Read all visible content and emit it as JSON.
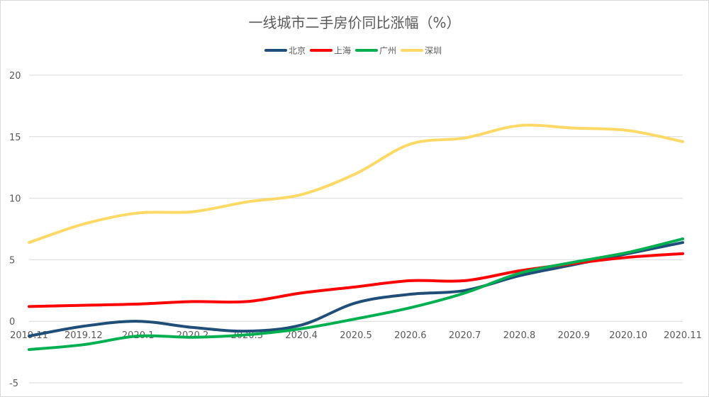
{
  "chart_data": {
    "type": "line",
    "title": "一线城市二手房价同比涨幅（%）",
    "categories": [
      "2019.11",
      "2019.12",
      "2020.1",
      "2020.2",
      "2020.3",
      "2020.4",
      "2020.5",
      "2020.6",
      "2020.7",
      "2020.8",
      "2020.9",
      "2020.10",
      "2020.11"
    ],
    "ylim": [
      -5,
      20
    ],
    "yticks": [
      -5,
      0,
      5,
      10,
      15,
      20
    ],
    "grid": true,
    "legend_position": "top",
    "series": [
      {
        "name": "北京",
        "color": "#1f4e79",
        "values": [
          -1.2,
          -0.4,
          0.0,
          -0.5,
          -0.8,
          -0.3,
          1.5,
          2.2,
          2.5,
          3.7,
          4.6,
          5.5,
          6.4
        ]
      },
      {
        "name": "上海",
        "color": "#ff0000",
        "values": [
          1.2,
          1.3,
          1.4,
          1.6,
          1.6,
          2.3,
          2.8,
          3.3,
          3.3,
          4.1,
          4.7,
          5.2,
          5.5
        ]
      },
      {
        "name": "广州",
        "color": "#00b050",
        "values": [
          -2.3,
          -1.9,
          -1.2,
          -1.3,
          -1.1,
          -0.6,
          0.2,
          1.1,
          2.3,
          3.9,
          4.8,
          5.6,
          6.7
        ]
      },
      {
        "name": "深圳",
        "color": "#ffd966",
        "values": [
          6.4,
          7.9,
          8.8,
          8.9,
          9.7,
          10.3,
          12.0,
          14.4,
          14.9,
          15.9,
          15.7,
          15.5,
          14.6
        ]
      }
    ]
  }
}
